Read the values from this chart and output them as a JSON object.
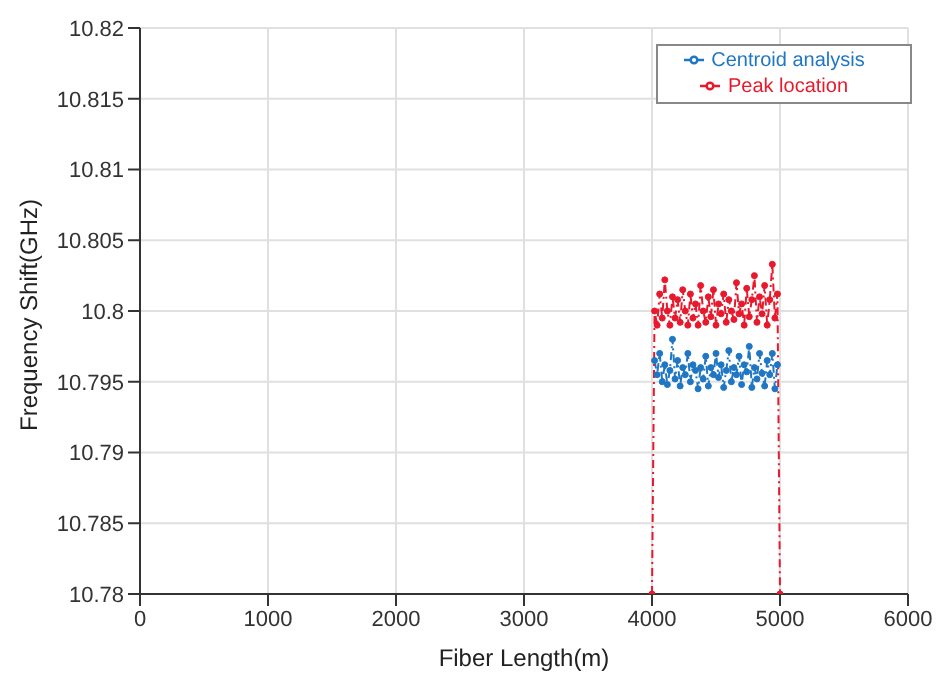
{
  "chart_data": {
    "type": "line",
    "xlabel": "Fiber Length(m)",
    "ylabel": "Frequency Shift(GHz)",
    "x": [
      4000,
      4020,
      4040,
      4060,
      4080,
      4100,
      4120,
      4140,
      4160,
      4180,
      4200,
      4220,
      4240,
      4260,
      4280,
      4300,
      4320,
      4340,
      4360,
      4380,
      4400,
      4420,
      4440,
      4460,
      4480,
      4500,
      4520,
      4540,
      4560,
      4580,
      4600,
      4620,
      4640,
      4660,
      4680,
      4700,
      4720,
      4740,
      4760,
      4780,
      4800,
      4820,
      4840,
      4860,
      4880,
      4900,
      4920,
      4940,
      4960,
      4980,
      5000
    ],
    "series": [
      {
        "name": "Centroid analysis",
        "color": "#1f77c4",
        "values": [
          null,
          10.7965,
          10.7955,
          10.797,
          10.795,
          10.7962,
          10.7948,
          10.7958,
          10.798,
          10.7952,
          10.7965,
          10.7947,
          10.796,
          10.7955,
          10.797,
          10.795,
          10.7962,
          10.7958,
          10.7945,
          10.796,
          10.7952,
          10.7968,
          10.7947,
          10.796,
          10.7955,
          10.797,
          10.7953,
          10.7962,
          10.7946,
          10.7958,
          10.7972,
          10.795,
          10.796,
          10.7955,
          10.7968,
          10.7948,
          10.7962,
          10.7957,
          10.7975,
          10.7946,
          10.796,
          10.7952,
          10.797,
          10.7956,
          10.7947,
          10.7965,
          10.7955,
          10.797,
          10.7945,
          10.7962,
          null
        ]
      },
      {
        "name": "Peak location",
        "color": "#e8192c",
        "values": [
          10.78,
          10.8,
          10.799,
          10.8012,
          10.7995,
          10.8022,
          10.8,
          10.799,
          10.801,
          10.7995,
          10.8008,
          10.7992,
          10.8015,
          10.8,
          10.799,
          10.8012,
          10.7995,
          10.8005,
          10.799,
          10.8018,
          10.8,
          10.7992,
          10.801,
          10.7996,
          10.8015,
          10.799,
          10.8005,
          10.7998,
          10.8012,
          10.7992,
          10.8008,
          10.8,
          10.7994,
          10.802,
          10.7998,
          10.8005,
          10.799,
          10.8016,
          10.7996,
          10.8008,
          10.8025,
          10.7992,
          10.801,
          10.7998,
          10.8018,
          10.799,
          10.8008,
          10.8033,
          10.7995,
          10.8012,
          10.78
        ]
      }
    ],
    "xlim": [
      0,
      6000
    ],
    "xticks": [
      0,
      1000,
      2000,
      3000,
      4000,
      5000,
      6000
    ],
    "ylim": [
      10.78,
      10.82
    ],
    "yticks": [
      10.78,
      10.785,
      10.79,
      10.795,
      10.8,
      10.805,
      10.81,
      10.815,
      10.82
    ],
    "grid": true,
    "legend": "top right",
    "marker": "circle",
    "line_style": "dashed"
  }
}
